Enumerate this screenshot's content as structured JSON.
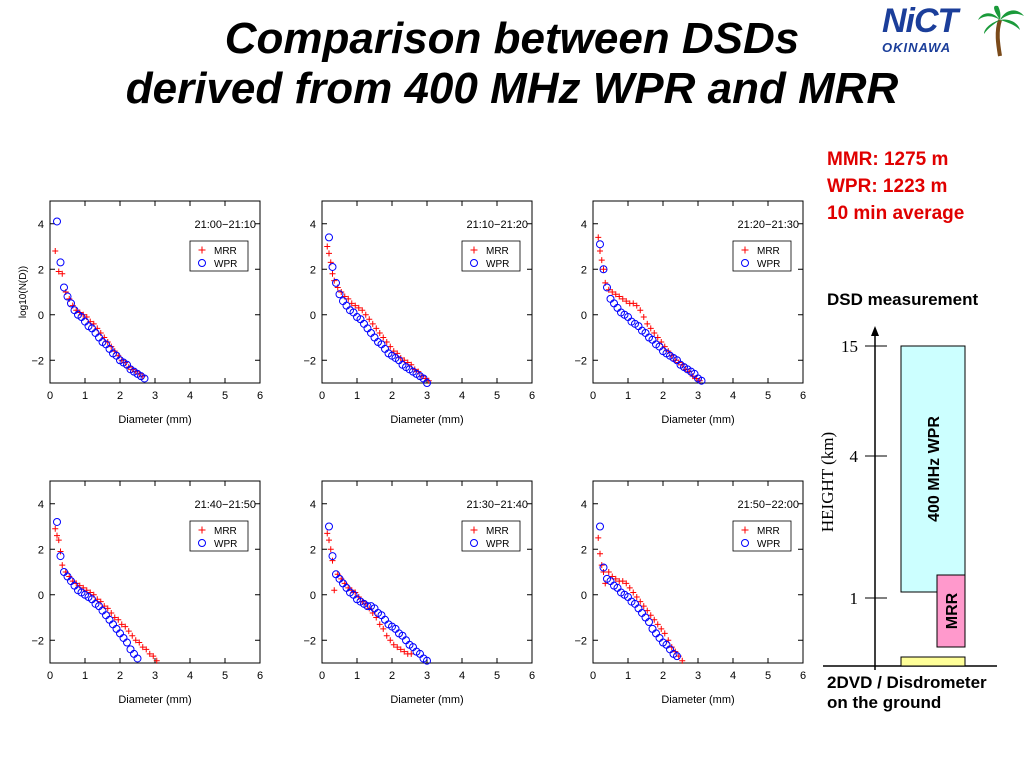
{
  "title_line1": "Comparison between DSDs",
  "title_line2": "derived from 400 MHz WPR and MRR",
  "logo": {
    "text": "NiCT",
    "subtext": "OKINAWA",
    "icon": "palm-tree-icon"
  },
  "info": {
    "line1": "MMR: 1275 m",
    "line2": "WPR: 1223 m",
    "line3": "10 min average",
    "color": "#e00000"
  },
  "dsd_measurement": {
    "title": "DSD measurement",
    "ylabel": "HEIGHT (km)",
    "ticks": [
      "15",
      "4",
      "1"
    ],
    "wpr_label": "400 MHz WPR",
    "mrr_label": "MRR",
    "ground_line1": "2DVD / Disdrometer",
    "ground_line2": "on the ground",
    "wpr_color": "#ccffff",
    "mrr_color": "#ff99cc",
    "ground_color": "#ffff99"
  },
  "chart_data": [
    {
      "type": "scatter",
      "time": "21:00−21:10",
      "xlabel": "Diameter (mm)",
      "ylabel": "log10(N(D))",
      "xlim": [
        0,
        6
      ],
      "ylim": [
        -3,
        5
      ],
      "xticks": [
        "0",
        "1",
        "2",
        "3",
        "4",
        "5",
        "6"
      ],
      "yticks": [
        "4",
        "2",
        "0",
        "−2"
      ],
      "legend": "top-right",
      "series": [
        {
          "name": "MRR",
          "marker": "+",
          "color": "#ff0000",
          "x": [
            0.15,
            0.25,
            0.35,
            0.45,
            0.55,
            0.65,
            0.75,
            0.85,
            0.95,
            1.05,
            1.15,
            1.25,
            1.35,
            1.45,
            1.55,
            1.65,
            1.75,
            1.85,
            1.95,
            2.05,
            2.15,
            2.25,
            2.35,
            2.45,
            2.55,
            2.65
          ],
          "y": [
            2.8,
            1.9,
            1.8,
            1.0,
            0.7,
            0.4,
            0.2,
            0.1,
            0.0,
            -0.1,
            -0.3,
            -0.4,
            -0.6,
            -0.8,
            -1.0,
            -1.2,
            -1.4,
            -1.6,
            -1.8,
            -2.0,
            -2.1,
            -2.3,
            -2.4,
            -2.5,
            -2.6,
            -2.7
          ]
        },
        {
          "name": "WPR",
          "marker": "o",
          "color": "#0000ff",
          "x": [
            0.2,
            0.3,
            0.4,
            0.5,
            0.6,
            0.7,
            0.8,
            0.9,
            1.0,
            1.1,
            1.2,
            1.3,
            1.4,
            1.5,
            1.6,
            1.7,
            1.8,
            1.9,
            2.0,
            2.1,
            2.2,
            2.3,
            2.4,
            2.5,
            2.6,
            2.7
          ],
          "y": [
            4.1,
            2.3,
            1.2,
            0.8,
            0.5,
            0.2,
            0.0,
            -0.1,
            -0.3,
            -0.5,
            -0.6,
            -0.8,
            -1.0,
            -1.2,
            -1.3,
            -1.5,
            -1.7,
            -1.8,
            -2.0,
            -2.1,
            -2.2,
            -2.4,
            -2.5,
            -2.6,
            -2.7,
            -2.8
          ]
        }
      ]
    },
    {
      "type": "scatter",
      "time": "21:10−21:20",
      "xlabel": "Diameter (mm)",
      "ylabel": "",
      "xlim": [
        0,
        6
      ],
      "ylim": [
        -3,
        5
      ],
      "xticks": [
        "0",
        "1",
        "2",
        "3",
        "4",
        "5",
        "6"
      ],
      "yticks": [
        "4",
        "2",
        "0",
        "−2"
      ],
      "legend": "top-right",
      "series": [
        {
          "name": "MRR",
          "marker": "+",
          "color": "#ff0000",
          "x": [
            0.15,
            0.2,
            0.25,
            0.3,
            0.35,
            0.45,
            0.55,
            0.65,
            0.75,
            0.85,
            0.95,
            1.05,
            1.15,
            1.25,
            1.35,
            1.45,
            1.55,
            1.65,
            1.75,
            1.85,
            1.95,
            2.05,
            2.15,
            2.25,
            2.35,
            2.45,
            2.55,
            2.65,
            2.75,
            2.85,
            2.95,
            3.05
          ],
          "y": [
            3.0,
            2.7,
            2.3,
            1.8,
            1.5,
            1.2,
            1.0,
            0.8,
            0.7,
            0.5,
            0.4,
            0.3,
            0.2,
            0.0,
            -0.2,
            -0.4,
            -0.6,
            -0.8,
            -1.0,
            -1.2,
            -1.4,
            -1.6,
            -1.7,
            -1.9,
            -2.0,
            -2.1,
            -2.2,
            -2.4,
            -2.5,
            -2.7,
            -2.8,
            -2.9
          ]
        },
        {
          "name": "WPR",
          "marker": "o",
          "color": "#0000ff",
          "x": [
            0.2,
            0.3,
            0.4,
            0.5,
            0.6,
            0.7,
            0.8,
            0.9,
            1.0,
            1.1,
            1.2,
            1.3,
            1.4,
            1.5,
            1.6,
            1.7,
            1.8,
            1.9,
            2.0,
            2.1,
            2.2,
            2.3,
            2.4,
            2.5,
            2.6,
            2.7,
            2.8,
            2.9,
            3.0
          ],
          "y": [
            3.4,
            2.1,
            1.4,
            0.9,
            0.6,
            0.4,
            0.2,
            0.1,
            -0.1,
            -0.2,
            -0.4,
            -0.6,
            -0.8,
            -1.0,
            -1.2,
            -1.3,
            -1.5,
            -1.7,
            -1.8,
            -1.9,
            -2.0,
            -2.2,
            -2.3,
            -2.4,
            -2.5,
            -2.6,
            -2.7,
            -2.8,
            -3.0
          ]
        }
      ]
    },
    {
      "type": "scatter",
      "time": "21:20−21:30",
      "xlabel": "Diameter (mm)",
      "ylabel": "",
      "xlim": [
        0,
        6
      ],
      "ylim": [
        -3,
        5
      ],
      "xticks": [
        "0",
        "1",
        "2",
        "3",
        "4",
        "5",
        "6"
      ],
      "yticks": [
        "4",
        "2",
        "0",
        "−2"
      ],
      "legend": "top-right",
      "series": [
        {
          "name": "MRR",
          "marker": "+",
          "color": "#ff0000",
          "x": [
            0.15,
            0.2,
            0.25,
            0.3,
            0.35,
            0.45,
            0.55,
            0.65,
            0.75,
            0.85,
            0.95,
            1.05,
            1.15,
            1.25,
            1.35,
            1.45,
            1.55,
            1.65,
            1.75,
            1.85,
            1.95,
            2.05,
            2.15,
            2.25,
            2.35,
            2.45,
            2.55,
            2.65,
            2.75,
            2.85,
            2.95,
            3.05
          ],
          "y": [
            3.4,
            2.8,
            2.4,
            2.0,
            1.4,
            1.1,
            1.0,
            0.9,
            0.8,
            0.7,
            0.6,
            0.5,
            0.5,
            0.4,
            0.2,
            -0.1,
            -0.4,
            -0.6,
            -0.8,
            -1.0,
            -1.2,
            -1.4,
            -1.6,
            -1.8,
            -2.0,
            -2.1,
            -2.2,
            -2.4,
            -2.5,
            -2.7,
            -2.8,
            -2.9
          ]
        },
        {
          "name": "WPR",
          "marker": "o",
          "color": "#0000ff",
          "x": [
            0.2,
            0.3,
            0.4,
            0.5,
            0.6,
            0.7,
            0.8,
            0.9,
            1.0,
            1.1,
            1.2,
            1.3,
            1.4,
            1.5,
            1.6,
            1.7,
            1.8,
            1.9,
            2.0,
            2.1,
            2.2,
            2.3,
            2.4,
            2.5,
            2.6,
            2.7,
            2.8,
            2.9,
            3.0,
            3.1
          ],
          "y": [
            3.1,
            2.0,
            1.2,
            0.7,
            0.5,
            0.3,
            0.1,
            0.0,
            -0.1,
            -0.3,
            -0.4,
            -0.5,
            -0.7,
            -0.8,
            -1.0,
            -1.1,
            -1.3,
            -1.4,
            -1.6,
            -1.7,
            -1.8,
            -1.9,
            -2.0,
            -2.2,
            -2.3,
            -2.4,
            -2.5,
            -2.6,
            -2.8,
            -2.9
          ]
        }
      ]
    },
    {
      "type": "scatter",
      "time": "21:40−21:50",
      "xlabel": "Diameter (mm)",
      "ylabel": "",
      "xlim": [
        0,
        6
      ],
      "ylim": [
        -3,
        5
      ],
      "xticks": [
        "0",
        "1",
        "2",
        "3",
        "4",
        "5",
        "6"
      ],
      "yticks": [
        "4",
        "2",
        "0",
        "−2"
      ],
      "legend": "top-right",
      "series": [
        {
          "name": "MRR",
          "marker": "+",
          "color": "#ff0000",
          "x": [
            0.15,
            0.2,
            0.25,
            0.3,
            0.35,
            0.45,
            0.55,
            0.65,
            0.75,
            0.85,
            0.95,
            1.05,
            1.15,
            1.25,
            1.35,
            1.45,
            1.55,
            1.65,
            1.75,
            1.85,
            1.95,
            2.05,
            2.15,
            2.25,
            2.35,
            2.45,
            2.55,
            2.65,
            2.75,
            2.85,
            2.95,
            3.05
          ],
          "y": [
            2.9,
            2.6,
            2.4,
            1.9,
            1.3,
            1.0,
            0.8,
            0.6,
            0.5,
            0.4,
            0.3,
            0.2,
            0.1,
            0.0,
            -0.2,
            -0.3,
            -0.5,
            -0.6,
            -0.8,
            -1.0,
            -1.1,
            -1.3,
            -1.4,
            -1.6,
            -1.8,
            -2.0,
            -2.1,
            -2.3,
            -2.4,
            -2.6,
            -2.7,
            -2.9
          ]
        },
        {
          "name": "WPR",
          "marker": "o",
          "color": "#0000ff",
          "x": [
            0.2,
            0.3,
            0.4,
            0.5,
            0.6,
            0.7,
            0.8,
            0.9,
            1.0,
            1.1,
            1.2,
            1.3,
            1.4,
            1.5,
            1.6,
            1.7,
            1.8,
            1.9,
            2.0,
            2.1,
            2.2,
            2.3,
            2.4,
            2.5
          ],
          "y": [
            3.2,
            1.7,
            1.0,
            0.8,
            0.6,
            0.4,
            0.2,
            0.1,
            0.0,
            -0.1,
            -0.2,
            -0.4,
            -0.5,
            -0.7,
            -0.9,
            -1.1,
            -1.3,
            -1.5,
            -1.7,
            -1.9,
            -2.1,
            -2.4,
            -2.6,
            -2.8
          ]
        }
      ]
    },
    {
      "type": "scatter",
      "time": "21:30−21:40",
      "xlabel": "Diameter (mm)",
      "ylabel": "",
      "xlim": [
        0,
        6
      ],
      "ylim": [
        -3,
        5
      ],
      "xticks": [
        "0",
        "1",
        "2",
        "3",
        "4",
        "5",
        "6"
      ],
      "yticks": [
        "4",
        "2",
        "0",
        "−2"
      ],
      "legend": "top-right",
      "series": [
        {
          "name": "MRR",
          "marker": "+",
          "color": "#ff0000",
          "x": [
            0.15,
            0.2,
            0.25,
            0.3,
            0.35,
            0.45,
            0.55,
            0.65,
            0.75,
            0.85,
            0.95,
            1.05,
            1.15,
            1.25,
            1.35,
            1.45,
            1.55,
            1.65,
            1.75,
            1.85,
            1.95,
            2.05,
            2.15,
            2.25,
            2.35,
            2.45,
            2.55
          ],
          "y": [
            2.7,
            2.4,
            2.0,
            1.5,
            0.2,
            0.9,
            0.7,
            0.5,
            0.3,
            0.2,
            0.1,
            -0.1,
            -0.3,
            -0.4,
            -0.6,
            -0.8,
            -1.0,
            -1.3,
            -1.5,
            -1.8,
            -2.0,
            -2.2,
            -2.3,
            -2.4,
            -2.5,
            -2.6,
            -2.6
          ]
        },
        {
          "name": "WPR",
          "marker": "o",
          "color": "#0000ff",
          "x": [
            0.2,
            0.3,
            0.4,
            0.5,
            0.6,
            0.7,
            0.8,
            0.9,
            1.0,
            1.1,
            1.2,
            1.3,
            1.4,
            1.5,
            1.6,
            1.7,
            1.8,
            1.9,
            2.0,
            2.1,
            2.2,
            2.3,
            2.4,
            2.5,
            2.6,
            2.7,
            2.8,
            2.9,
            3.0
          ],
          "y": [
            3.0,
            1.7,
            0.9,
            0.7,
            0.5,
            0.3,
            0.1,
            0.0,
            -0.2,
            -0.3,
            -0.4,
            -0.5,
            -0.5,
            -0.6,
            -0.8,
            -0.9,
            -1.1,
            -1.3,
            -1.4,
            -1.5,
            -1.7,
            -1.8,
            -2.0,
            -2.2,
            -2.3,
            -2.5,
            -2.6,
            -2.8,
            -2.9
          ]
        }
      ]
    },
    {
      "type": "scatter",
      "time": "21:50−22:00",
      "xlabel": "Diameter (mm)",
      "ylabel": "",
      "xlim": [
        0,
        6
      ],
      "ylim": [
        -3,
        5
      ],
      "xticks": [
        "0",
        "1",
        "2",
        "3",
        "4",
        "5",
        "6"
      ],
      "yticks": [
        "4",
        "2",
        "0",
        "−2"
      ],
      "legend": "top-right",
      "series": [
        {
          "name": "MRR",
          "marker": "+",
          "color": "#ff0000",
          "x": [
            0.15,
            0.2,
            0.25,
            0.3,
            0.35,
            0.45,
            0.55,
            0.65,
            0.75,
            0.85,
            0.95,
            1.05,
            1.15,
            1.25,
            1.35,
            1.45,
            1.55,
            1.65,
            1.75,
            1.85,
            1.95,
            2.05,
            2.15,
            2.25,
            2.35,
            2.45,
            2.55
          ],
          "y": [
            2.5,
            1.8,
            1.3,
            1.0,
            0.5,
            1.0,
            0.8,
            0.7,
            0.6,
            0.6,
            0.5,
            0.3,
            0.1,
            -0.1,
            -0.3,
            -0.5,
            -0.7,
            -0.9,
            -1.1,
            -1.3,
            -1.5,
            -1.7,
            -2.0,
            -2.3,
            -2.5,
            -2.7,
            -2.9
          ]
        },
        {
          "name": "WPR",
          "marker": "o",
          "color": "#0000ff",
          "x": [
            0.2,
            0.3,
            0.4,
            0.5,
            0.6,
            0.7,
            0.8,
            0.9,
            1.0,
            1.1,
            1.2,
            1.3,
            1.4,
            1.5,
            1.6,
            1.7,
            1.8,
            1.9,
            2.0,
            2.1,
            2.2,
            2.3,
            2.4
          ],
          "y": [
            3.0,
            1.2,
            0.7,
            0.6,
            0.4,
            0.3,
            0.1,
            0.0,
            -0.1,
            -0.3,
            -0.4,
            -0.6,
            -0.8,
            -1.0,
            -1.2,
            -1.5,
            -1.7,
            -1.9,
            -2.1,
            -2.2,
            -2.4,
            -2.6,
            -2.7
          ]
        }
      ]
    }
  ]
}
